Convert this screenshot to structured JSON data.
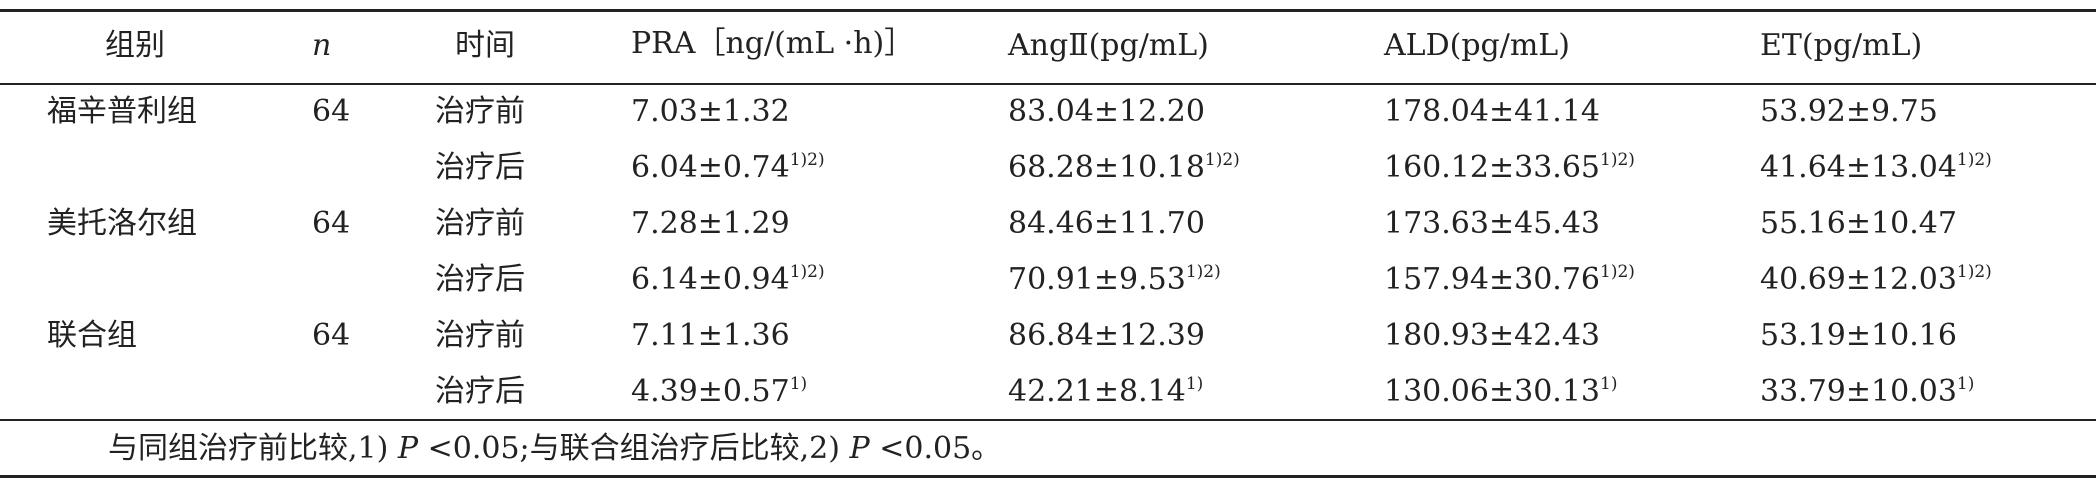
{
  "table": {
    "header": [
      "组别",
      "n",
      "时间",
      "PRA［ng/(mL ·h)］",
      "AngⅡ(pg/mL)",
      "ALD(pg/mL)",
      "ET(pg/mL)"
    ],
    "rows": [
      [
        "福辛普利组",
        "64",
        "治疗前",
        "7.03±1.32",
        "83.04±12.20",
        "178.04±41.14",
        "53.92±9.75"
      ],
      [
        null,
        null,
        "治疗后",
        {
          "text": "6.04±0.74",
          "sup": "1)2)"
        },
        {
          "text": "68.28±10.18",
          "sup": "1)2)"
        },
        {
          "text": "160.12±33.65",
          "sup": "1)2)"
        },
        {
          "text": "41.64±13.04",
          "sup": "1)2)"
        }
      ],
      [
        "美托洛尔组",
        "64",
        "治疗前",
        "7.28±1.29",
        "84.46±11.70",
        "173.63±45.43",
        "55.16±10.47"
      ],
      [
        null,
        null,
        "治疗后",
        {
          "text": "6.14±0.94",
          "sup": "1)2)"
        },
        {
          "text": "70.91±9.53",
          "sup": "1)2)"
        },
        {
          "text": "157.94±30.76",
          "sup": "1)2)"
        },
        {
          "text": "40.69±12.03",
          "sup": "1)2)"
        }
      ],
      [
        "联合组",
        "64",
        "治疗前",
        "7.11±1.36",
        "86.84±12.39",
        "180.93±42.43",
        "53.19±10.16"
      ],
      [
        null,
        null,
        "治疗后",
        {
          "text": "4.39±0.57",
          "sup": "1)"
        },
        {
          "text": "42.21±8.14",
          "sup": "1)"
        },
        {
          "text": "130.06±30.13",
          "sup": "1)"
        },
        {
          "text": "33.79±10.03",
          "sup": "1)"
        }
      ]
    ],
    "footnote": [
      "与同组治疗前比较,1) ",
      "P",
      " <0.05;与联合组治疗后比较,2) ",
      "P",
      " <0.05。"
    ]
  }
}
